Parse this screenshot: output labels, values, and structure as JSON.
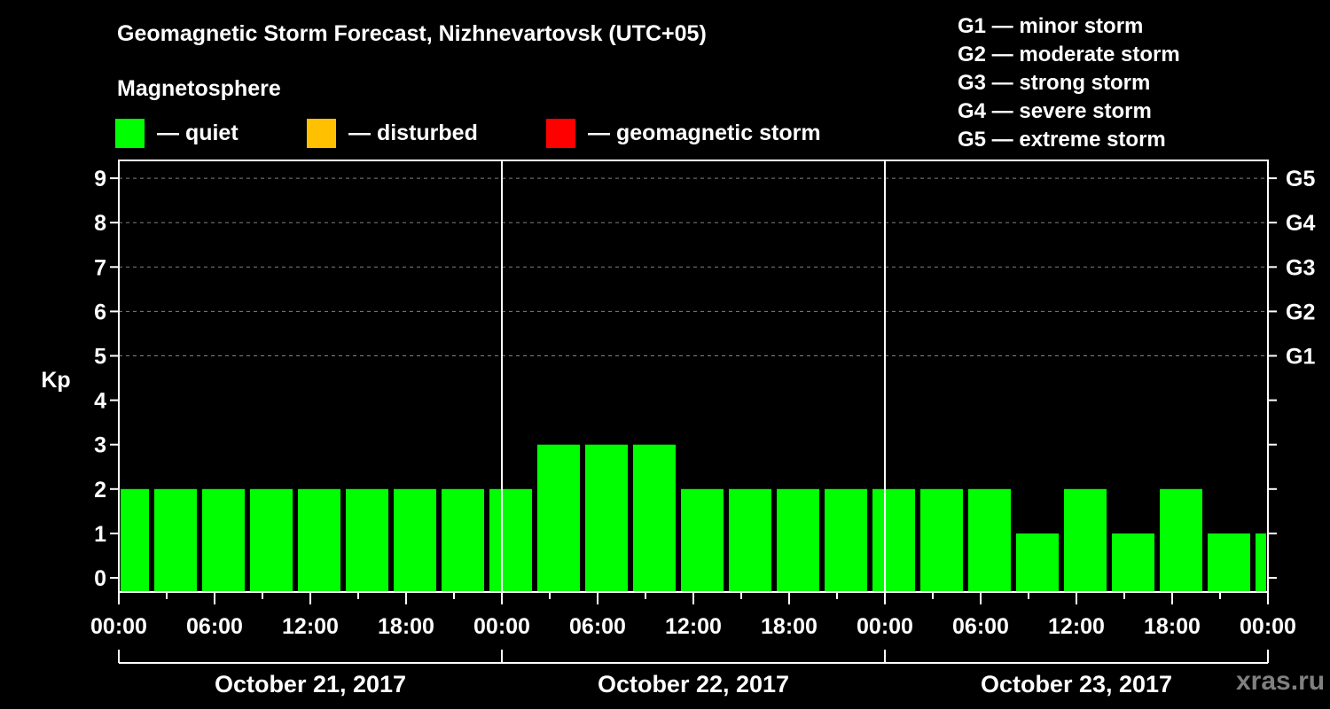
{
  "header": {
    "title": "Geomagnetic Storm Forecast, Nizhnevartovsk (UTC+05)",
    "subtitle": "Magnetosphere"
  },
  "legend": [
    {
      "label": "— quiet",
      "color": "#00ff00"
    },
    {
      "label": "— disturbed",
      "color": "#ffc000"
    },
    {
      "label": "— geomagnetic storm",
      "color": "#ff0000"
    }
  ],
  "g_scale_legend": [
    "G1 — minor storm",
    "G2 — moderate storm",
    "G3 — strong storm",
    "G4 — severe storm",
    "G5 — extreme storm"
  ],
  "watermark": "xras.ru",
  "chart_data": {
    "type": "bar",
    "title": "Geomagnetic Storm Forecast, Nizhnevartovsk (UTC+05)",
    "xlabel": "",
    "ylabel": "Kp",
    "ylim": [
      0,
      9
    ],
    "yticks": [
      "0",
      "1",
      "2",
      "3",
      "4",
      "5",
      "6",
      "7",
      "8",
      "9"
    ],
    "right_axis_ticks": [
      {
        "kp": 5,
        "label": "G1"
      },
      {
        "kp": 6,
        "label": "G2"
      },
      {
        "kp": 7,
        "label": "G3"
      },
      {
        "kp": 8,
        "label": "G4"
      },
      {
        "kp": 9,
        "label": "G5"
      }
    ],
    "grid": "dashed horizontal at Kp 5–9",
    "xtick_labels": [
      "00:00",
      "06:00",
      "12:00",
      "18:00",
      "00:00",
      "06:00",
      "12:00",
      "18:00",
      "00:00",
      "06:00",
      "12:00",
      "18:00",
      "00:00"
    ],
    "days": [
      "October 21, 2017",
      "October 22, 2017",
      "October 23, 2017"
    ],
    "bar_interval_hours": 3,
    "first_bar_start_hour": -1,
    "categories": [
      "Oct 21 ~00:00 (partial)",
      "Oct 21 02:00",
      "Oct 21 05:00",
      "Oct 21 08:00",
      "Oct 21 11:00",
      "Oct 21 14:00",
      "Oct 21 17:00",
      "Oct 21 20:00",
      "Oct 21 23:00",
      "Oct 22 02:00",
      "Oct 22 05:00",
      "Oct 22 08:00",
      "Oct 22 11:00",
      "Oct 22 14:00",
      "Oct 22 17:00",
      "Oct 22 20:00",
      "Oct 22 23:00",
      "Oct 23 02:00",
      "Oct 23 05:00",
      "Oct 23 08:00",
      "Oct 23 11:00",
      "Oct 23 14:00",
      "Oct 23 17:00",
      "Oct 23 20:00",
      "Oct 23 23:00 (partial)"
    ],
    "values": [
      2,
      2,
      2,
      2,
      2,
      2,
      2,
      2,
      2,
      3,
      3,
      3,
      2,
      2,
      2,
      2,
      2,
      2,
      2,
      1,
      2,
      1,
      2,
      1,
      1
    ],
    "bar_color": "#00ff00"
  }
}
